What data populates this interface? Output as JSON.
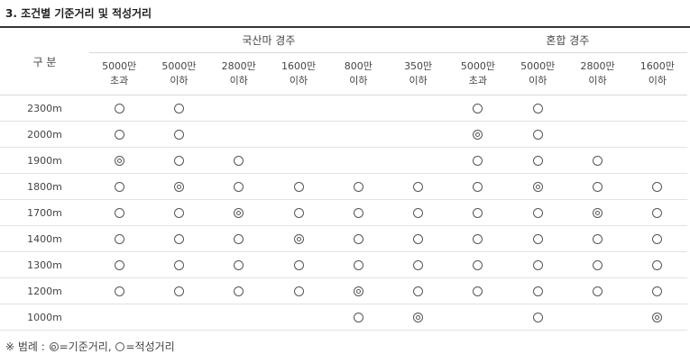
{
  "title": "3. 조건별 기준거리 및 적성거리",
  "header": {
    "division": "구 분",
    "groups": [
      "국산마 경주",
      "혼합 경주"
    ],
    "subheaders": [
      [
        "5000만",
        "초과"
      ],
      [
        "5000만",
        "이하"
      ],
      [
        "2800만",
        "이하"
      ],
      [
        "1600만",
        "이하"
      ],
      [
        "800만",
        "이하"
      ],
      [
        "350만",
        "이하"
      ],
      [
        "5000만",
        "초과"
      ],
      [
        "5000만",
        "이하"
      ],
      [
        "2800만",
        "이하"
      ],
      [
        "1600만",
        "이하"
      ]
    ]
  },
  "marks": {
    "key": "◎",
    "suitable": "○"
  },
  "rows": [
    {
      "distance": "2300m",
      "cells": [
        "○",
        "○",
        "",
        "",
        "",
        "",
        "○",
        "○",
        "",
        ""
      ]
    },
    {
      "distance": "2000m",
      "cells": [
        "○",
        "○",
        "",
        "",
        "",
        "",
        "◎",
        "○",
        "",
        ""
      ]
    },
    {
      "distance": "1900m",
      "cells": [
        "◎",
        "○",
        "○",
        "",
        "",
        "",
        "○",
        "○",
        "○",
        ""
      ]
    },
    {
      "distance": "1800m",
      "cells": [
        "○",
        "◎",
        "○",
        "○",
        "○",
        "○",
        "○",
        "◎",
        "○",
        "○"
      ]
    },
    {
      "distance": "1700m",
      "cells": [
        "○",
        "○",
        "◎",
        "○",
        "○",
        "○",
        "○",
        "○",
        "◎",
        "○"
      ]
    },
    {
      "distance": "1400m",
      "cells": [
        "○",
        "○",
        "○",
        "◎",
        "○",
        "○",
        "○",
        "○",
        "○",
        "○"
      ]
    },
    {
      "distance": "1300m",
      "cells": [
        "○",
        "○",
        "○",
        "○",
        "○",
        "○",
        "○",
        "○",
        "○",
        "○"
      ]
    },
    {
      "distance": "1200m",
      "cells": [
        "○",
        "○",
        "○",
        "○",
        "◎",
        "○",
        "○",
        "○",
        "○",
        "○"
      ]
    },
    {
      "distance": "1000m",
      "cells": [
        "",
        "",
        "",
        "",
        "○",
        "◎",
        "",
        "○",
        "",
        "◎"
      ]
    }
  ],
  "legend": {
    "prefix": "※ 범례 : ",
    "key_label": "=기준거리, ",
    "suitable_label": "=적성거리"
  }
}
